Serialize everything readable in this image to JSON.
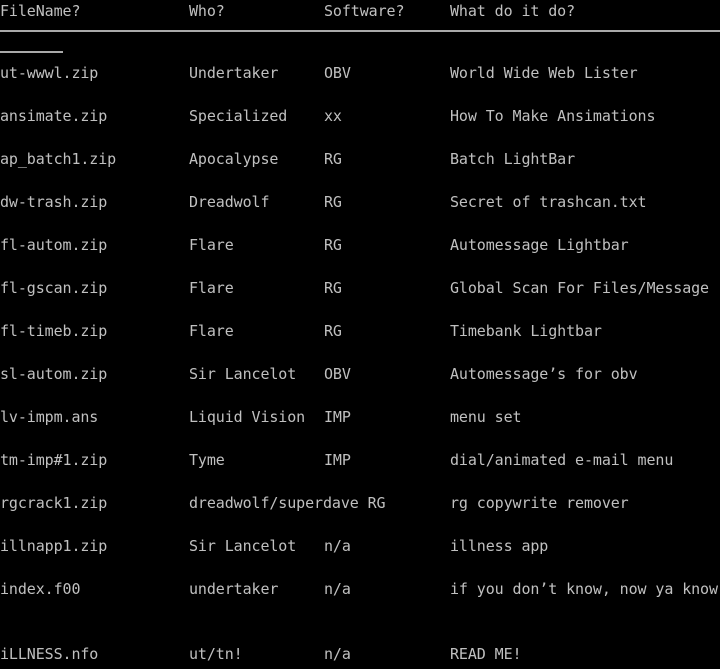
{
  "colors": {
    "background": "#000000",
    "text": "#c0c0c0",
    "divider": "#a9a9a9"
  },
  "table": {
    "header": {
      "file": "FileName?",
      "who": "Who?",
      "software": "Software?",
      "desc": "What do it do?"
    },
    "rows": [
      {
        "file": "ut-wwwl.zip",
        "who": "Undertaker",
        "software": "OBV",
        "desc": "World Wide Web Lister"
      },
      {
        "file": "ansimate.zip",
        "who": "Specialized",
        "software": "xx",
        "desc": "How To Make Ansimations"
      },
      {
        "file": "ap_batch1.zip",
        "who": "Apocalypse",
        "software": "RG",
        "desc": "Batch LightBar"
      },
      {
        "file": "dw-trash.zip",
        "who": "Dreadwolf",
        "software": "RG",
        "desc": "Secret of trashcan.txt"
      },
      {
        "file": "fl-autom.zip",
        "who": "Flare",
        "software": "RG",
        "desc": "Automessage Lightbar"
      },
      {
        "file": "fl-gscan.zip",
        "who": "Flare",
        "software": "RG",
        "desc": "Global Scan For Files/Message"
      },
      {
        "file": "fl-timeb.zip",
        "who": "Flare",
        "software": "RG",
        "desc": "Timebank Lightbar"
      },
      {
        "file": "sl-autom.zip",
        "who": "Sir Lancelot",
        "software": "OBV",
        "desc": "Automessage’s for obv"
      },
      {
        "file": "lv-impm.ans",
        "who": "Liquid Vision",
        "software": "IMP",
        "desc": "menu set"
      },
      {
        "file": "tm-imp#1.zip",
        "who": "Tyme",
        "software": "IMP",
        "desc": "dial/animated e-mail menu"
      },
      {
        "file": "rgcrack1.zip",
        "who": "dreadwolf/superdave",
        "software": "RG",
        "desc": "rg copywrite remover"
      },
      {
        "file": "illnapp1.zip",
        "who": "Sir Lancelot",
        "software": "n/a",
        "desc": "illness app"
      },
      {
        "file": "index.f00",
        "who": "undertaker",
        "software": "n/a",
        "desc": "if you don’t know, now ya know"
      },
      {
        "file": "iLLNESS.nfo",
        "who": "ut/tn!",
        "software": "n/a",
        "desc": "READ ME!"
      }
    ]
  }
}
